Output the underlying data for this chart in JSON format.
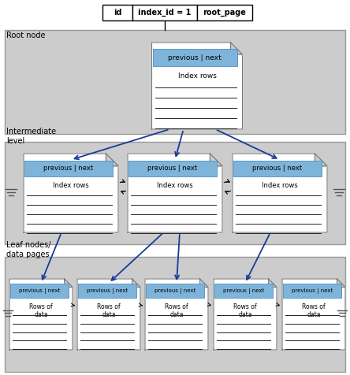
{
  "bg_color": "#ffffff",
  "gray_bg": "#cccccc",
  "page_bg": "#ffffff",
  "header_bg": "#7eb4d9",
  "header_border": "#4a90c4",
  "blue": "#1a3a9a",
  "black": "#111111",
  "table_cells": [
    "id",
    "index_id = 1",
    "root_page"
  ],
  "section_labels": [
    "Root node",
    "Intermediate\nlevel",
    "Leaf nodes/\ndata pages"
  ]
}
